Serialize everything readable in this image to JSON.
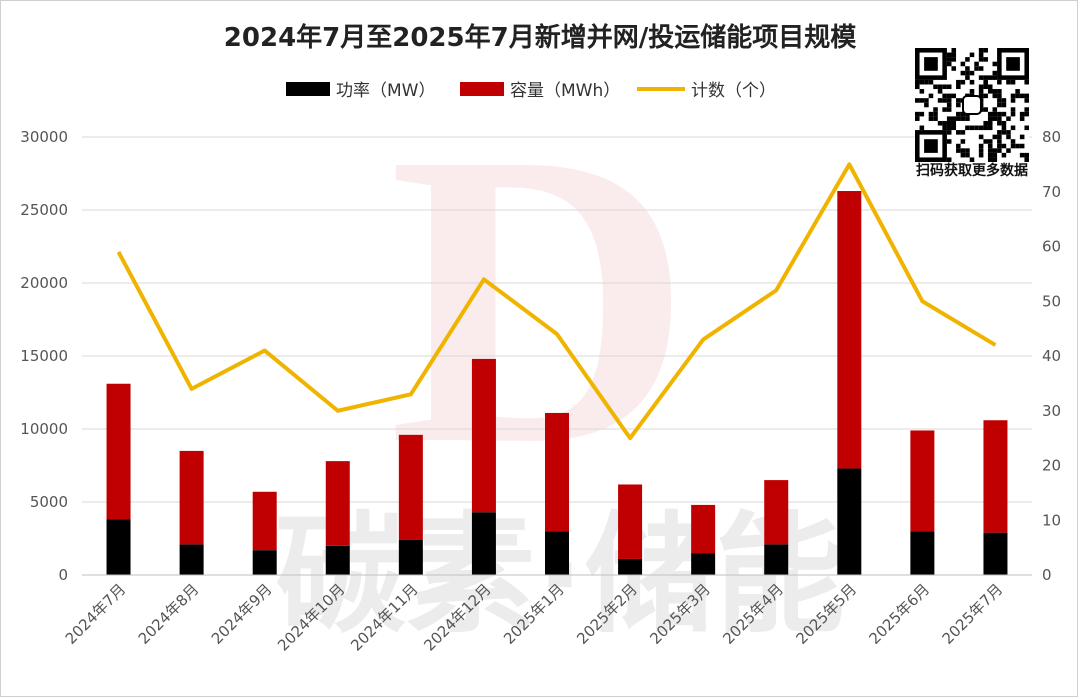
{
  "chart_data": {
    "type": "bar",
    "title": "2024年7月至2025年7月新增并网/投运储能项目规模",
    "categories": [
      "2024年7月",
      "2024年8月",
      "2024年9月",
      "2024年10月",
      "2024年11月",
      "2024年12月",
      "2025年1月",
      "2025年2月",
      "2025年3月",
      "2025年4月",
      "2025年5月",
      "2025年6月",
      "2025年7月"
    ],
    "series": [
      {
        "name": "功率（MW）",
        "kind": "bar-stacked",
        "color": "#000000",
        "values": [
          3800,
          2100,
          1700,
          2000,
          2400,
          4300,
          3000,
          1100,
          1500,
          2100,
          7300,
          3000,
          2900
        ]
      },
      {
        "name": "容量（MWh）",
        "kind": "bar-stacked",
        "color": "#c00000",
        "values": [
          9300,
          6400,
          4000,
          5800,
          7200,
          10500,
          8100,
          5100,
          3300,
          4400,
          19000,
          6900,
          7700
        ]
      },
      {
        "name": "计数（个）",
        "kind": "line",
        "axis": "right",
        "color": "#f0b400",
        "values": [
          59,
          34,
          41,
          30,
          33,
          54,
          44,
          25,
          43,
          52,
          75,
          50,
          42
        ]
      }
    ],
    "y_left": {
      "min": 0,
      "max": 30000,
      "ticks": [
        0,
        5000,
        10000,
        15000,
        20000,
        25000,
        30000
      ]
    },
    "y_right": {
      "min": 0,
      "max": 80,
      "ticks": [
        0,
        10,
        20,
        30,
        40,
        50,
        60,
        70,
        80
      ]
    },
    "legend_position": "top",
    "grid": true
  },
  "qr": {
    "caption": "扫码获取更多数据"
  },
  "watermark": {
    "text": "碳素·储能",
    "logo_letter": "D"
  }
}
